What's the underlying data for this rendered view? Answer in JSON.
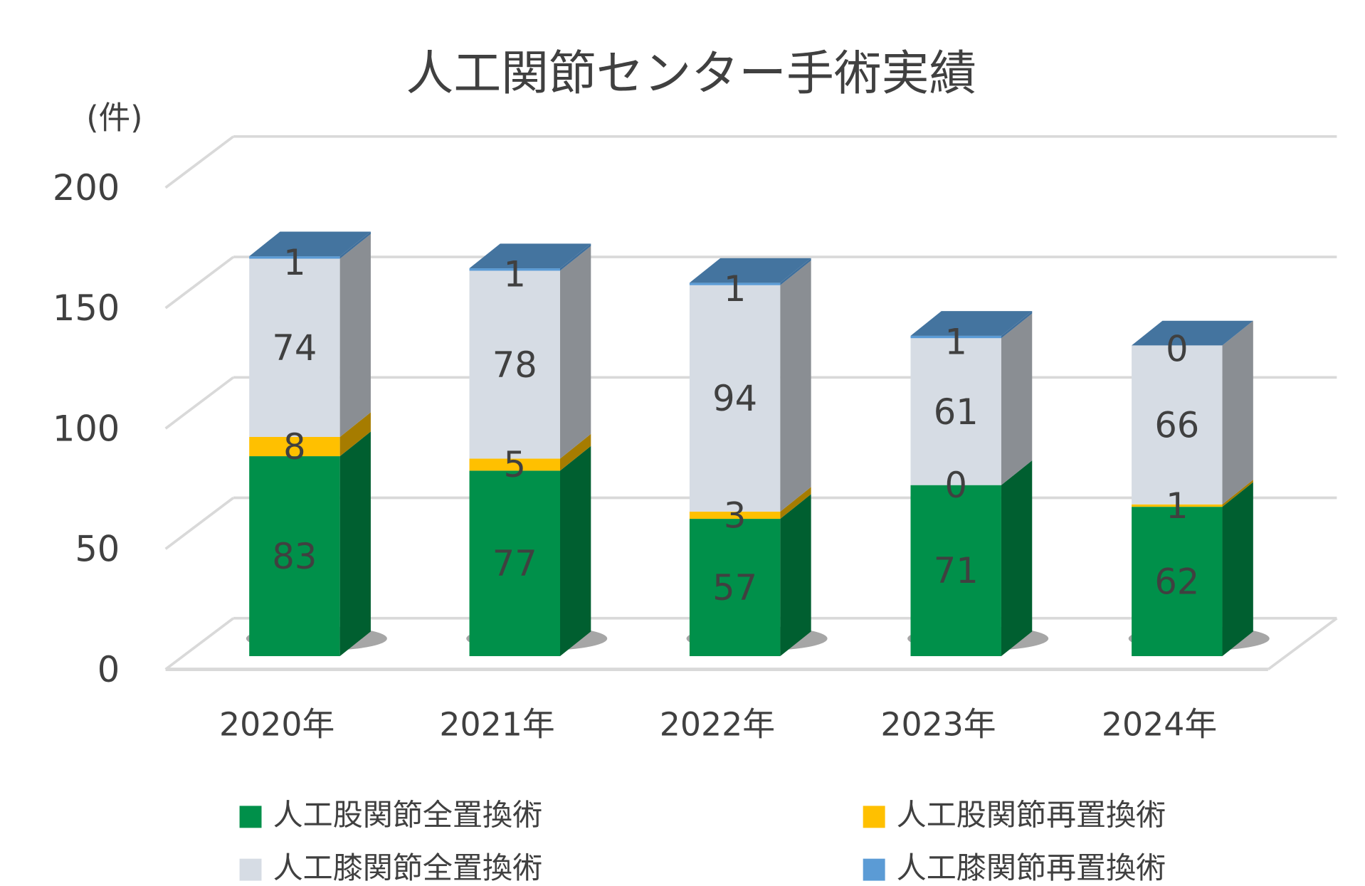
{
  "chart_data": {
    "type": "bar",
    "stacked": true,
    "three_d": true,
    "title": "人工関節センター手術実績",
    "ylabel": "(件)",
    "xlabel": "",
    "ylim": [
      0,
      200
    ],
    "yticks": [
      0,
      50,
      100,
      150,
      200
    ],
    "grid": true,
    "legend_position": "bottom",
    "categories": [
      "2020年",
      "2021年",
      "2022年",
      "2023年",
      "2024年"
    ],
    "series": [
      {
        "name": "人工股関節全置換術",
        "values": [
          83,
          77,
          57,
          71,
          62
        ],
        "color": "#00904A",
        "side_color": "#005F30"
      },
      {
        "name": "人工股関節再置換術",
        "values": [
          8,
          5,
          3,
          0,
          1
        ],
        "color": "#FFC000",
        "side_color": "#A67C00"
      },
      {
        "name": "人工膝関節全置換術",
        "values": [
          74,
          78,
          94,
          61,
          66
        ],
        "color": "#D6DCE4",
        "side_color": "#8A8E93"
      },
      {
        "name": "人工膝関節再置換術",
        "values": [
          1,
          1,
          1,
          1,
          0
        ],
        "color": "#5B9BD5",
        "side_color": "#3F6F9C",
        "top_color": "#44749F"
      }
    ]
  }
}
